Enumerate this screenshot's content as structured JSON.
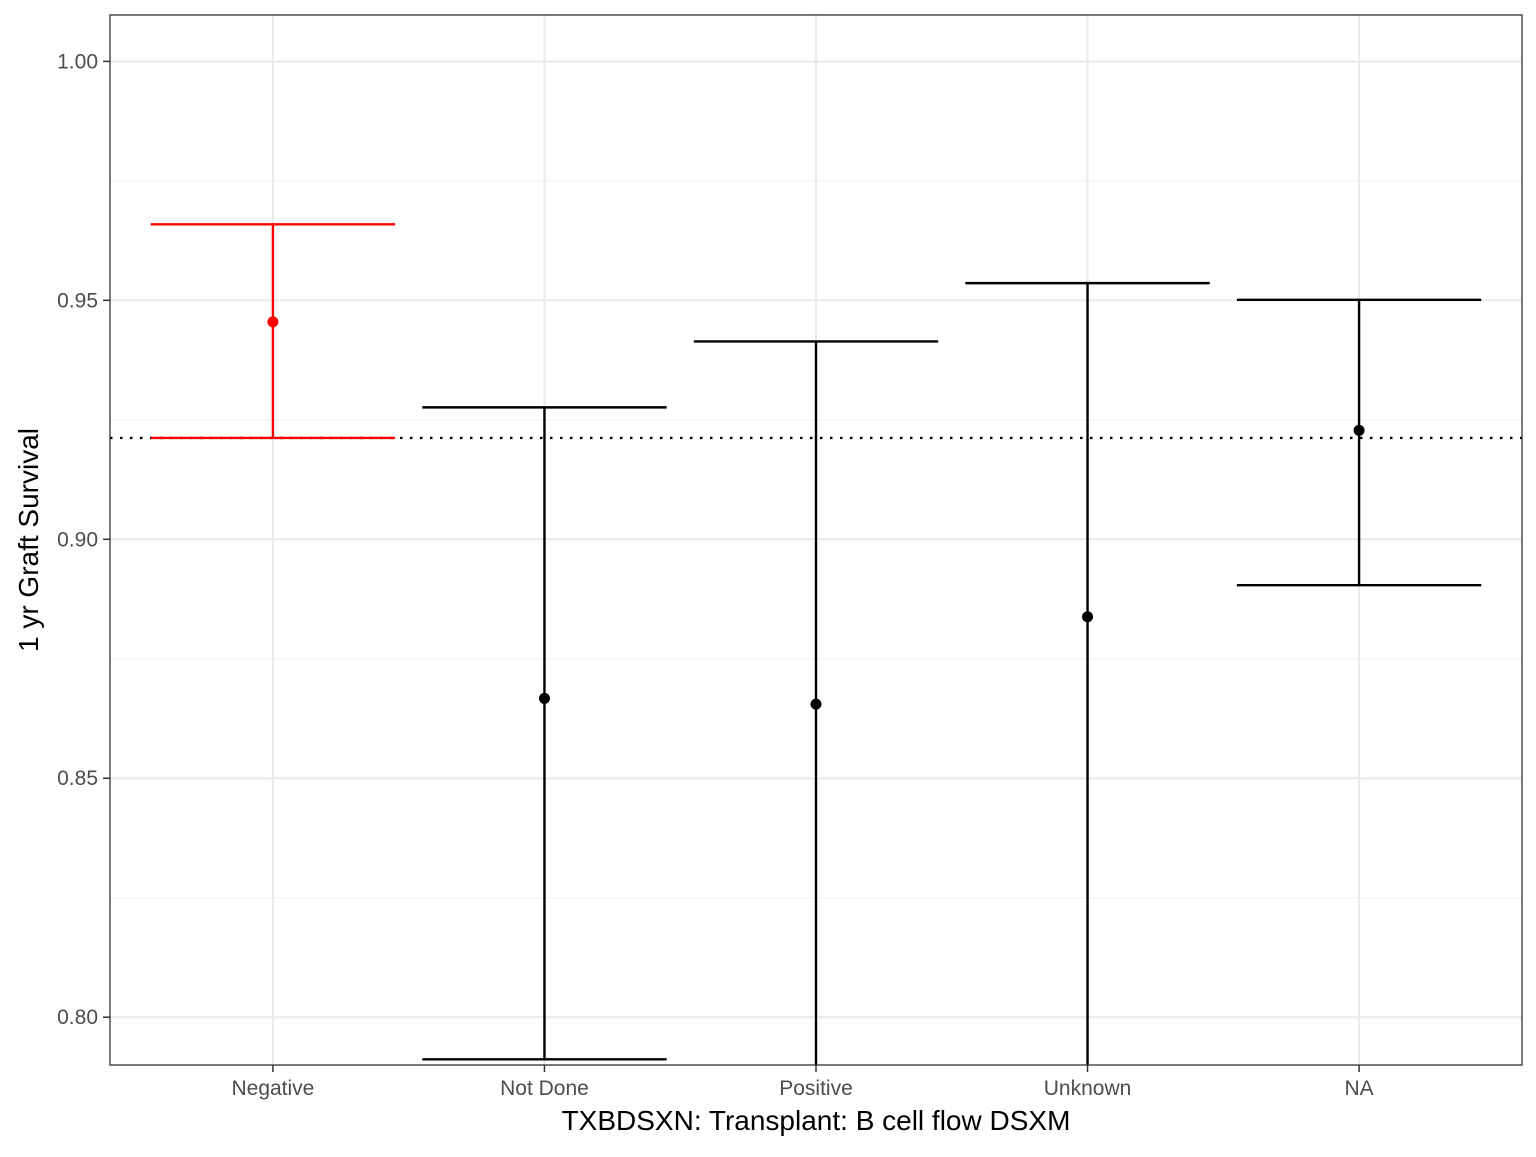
{
  "chart_data": {
    "type": "errorbar",
    "xlabel": "TXBDSXN: Transplant: B cell flow DSXM",
    "ylabel": "1 yr Graft Survival",
    "categories": [
      "Negative",
      "Not Done",
      "Positive",
      "Unknown",
      "NA"
    ],
    "series": [
      {
        "estimates": [
          0.9455,
          0.8667,
          0.8655,
          0.8838,
          0.9228
        ],
        "lower": [
          0.9212,
          0.7912,
          0.785,
          0.785,
          0.8904
        ],
        "upper": [
          0.9659,
          0.9276,
          0.9414,
          0.9536,
          0.9501
        ],
        "colors": [
          "#ff0000",
          "#000000",
          "#000000",
          "#000000",
          "#000000"
        ]
      }
    ],
    "reference_line": 0.9212,
    "ylim": [
      0.79,
      1.0097
    ],
    "yticks": [
      "0.80",
      "0.85",
      "0.90",
      "0.95",
      "1.00"
    ],
    "ytick_values": [
      0.8,
      0.85,
      0.9,
      0.95,
      1.0
    ],
    "grid": true,
    "highlight_color": "#ff0000",
    "default_color": "#000000"
  }
}
